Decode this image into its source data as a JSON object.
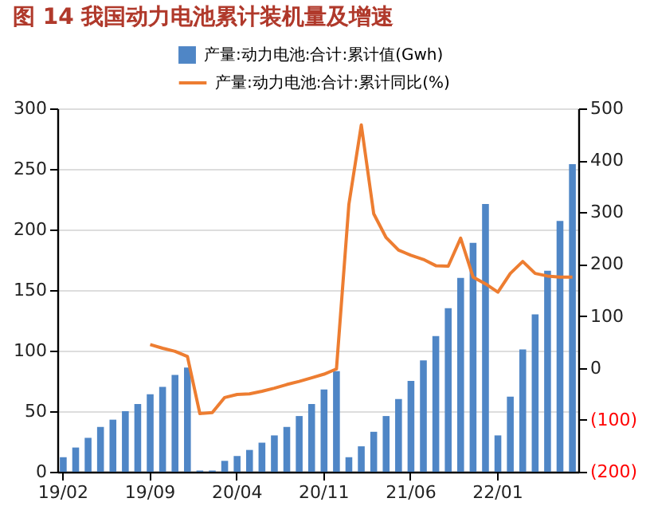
{
  "chart_data": {
    "type": "bar",
    "title": "图 14 我国动力电池累计装机量及增速",
    "categories": [
      "19/02",
      null,
      null,
      null,
      null,
      null,
      null,
      "19/09",
      null,
      null,
      null,
      null,
      null,
      null,
      "20/04",
      null,
      null,
      null,
      null,
      null,
      null,
      "20/11",
      null,
      null,
      null,
      null,
      null,
      null,
      "21/06",
      null,
      null,
      null,
      null,
      null,
      null,
      "22/01",
      null,
      null,
      null,
      null,
      null,
      null
    ],
    "series": [
      {
        "name": "产量:动力电池:合计:累计值(Gwh)",
        "color": "#4f86c6",
        "values": [
          12,
          20,
          28,
          37,
          43,
          50,
          56,
          64,
          70,
          80,
          86,
          1,
          1,
          9,
          13,
          18,
          24,
          30,
          37,
          46,
          56,
          68,
          83,
          12,
          21,
          33,
          46,
          60,
          75,
          92,
          112,
          135,
          160,
          189,
          221,
          30,
          62,
          101,
          130,
          166,
          207,
          254
        ]
      },
      {
        "name": "产量:动力电池:合计:累计同比(%)",
        "type": "line",
        "axis": "y2",
        "color": "#ed7d31",
        "values": [
          null,
          null,
          null,
          null,
          null,
          null,
          null,
          45,
          38,
          32,
          22,
          -88,
          -86,
          -57,
          -51,
          -50,
          -45,
          -39,
          -32,
          -26,
          -19,
          -12,
          -2,
          315,
          468,
          297,
          251,
          227,
          217,
          209,
          197,
          196,
          250,
          175,
          162,
          146,
          182,
          205,
          182,
          177,
          175,
          175
        ]
      }
    ],
    "ylim": [
      0,
      300
    ],
    "yticks": [
      0,
      50,
      100,
      150,
      200,
      250,
      300
    ],
    "y2lim": [
      -200,
      500
    ],
    "y2ticks": [
      {
        "value": -200,
        "label": "(200)"
      },
      {
        "value": -100,
        "label": "(100)"
      },
      0,
      100,
      200,
      300,
      400,
      500
    ],
    "grid": "y",
    "legend": "top"
  }
}
